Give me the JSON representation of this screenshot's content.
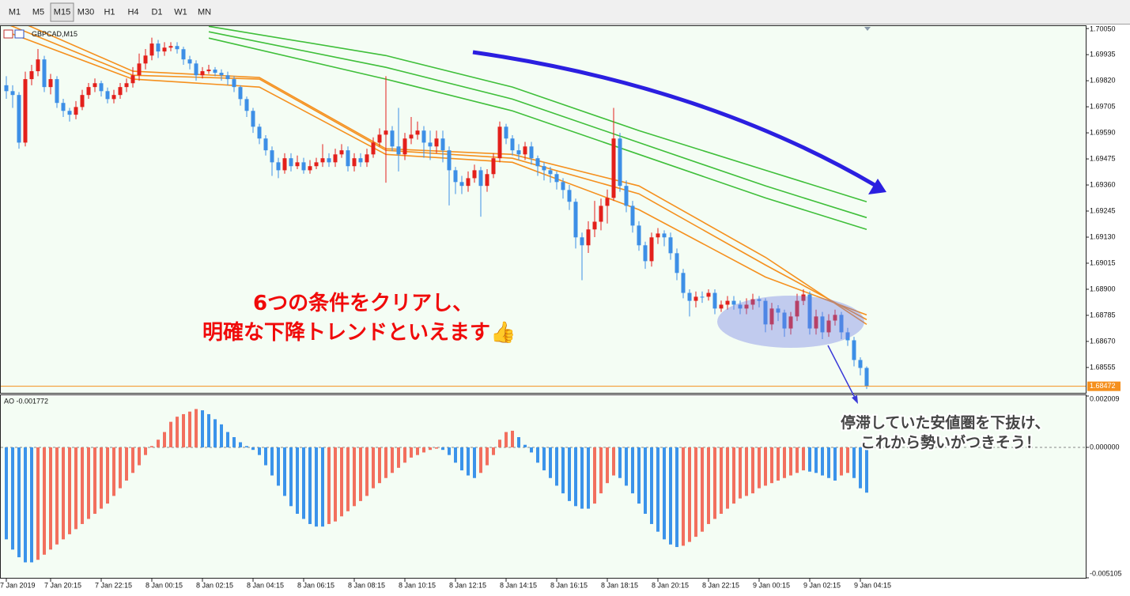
{
  "toolbar": {
    "timeframes": [
      "M1",
      "M5",
      "M15",
      "M30",
      "H1",
      "H4",
      "D1",
      "W1",
      "MN"
    ],
    "active": "M15"
  },
  "chart_data": [
    {
      "type": "candlestick",
      "title": "GBPCAD,M15",
      "categories": [
        "7 Jan 2019",
        null,
        null,
        null,
        null,
        null,
        null,
        "7 Jan 20:15",
        null,
        null,
        null,
        null,
        null,
        null,
        null,
        "7 Jan 22:15",
        null,
        null,
        null,
        null,
        null,
        null,
        null,
        "8 Jan 00:15",
        null,
        null,
        null,
        null,
        null,
        null,
        null,
        "8 Jan 02:15",
        null,
        null,
        null,
        null,
        null,
        null,
        null,
        "8 Jan 04:15",
        null,
        null,
        null,
        null,
        null,
        null,
        null,
        "8 Jan 06:15",
        null,
        null,
        null,
        null,
        null,
        null,
        null,
        "8 Jan 08:15",
        null,
        null,
        null,
        null,
        null,
        null,
        null,
        "8 Jan 10:15",
        null,
        null,
        null,
        null,
        null,
        null,
        null,
        "8 Jan 12:15",
        null,
        null,
        null,
        null,
        null,
        null,
        null,
        "8 Jan 14:15",
        null,
        null,
        null,
        null,
        null,
        null,
        null,
        "8 Jan 16:15",
        null,
        null,
        null,
        null,
        null,
        null,
        null,
        "8 Jan 18:15",
        null,
        null,
        null,
        null,
        null,
        null,
        null,
        "8 Jan 20:15",
        null,
        null,
        null,
        null,
        null,
        null,
        null,
        "8 Jan 22:15",
        null,
        null,
        null,
        null,
        null,
        null,
        null,
        "9 Jan 00:15",
        null,
        null,
        null,
        null,
        null,
        null,
        null,
        "9 Jan 02:15",
        null,
        null,
        null,
        null,
        null,
        null,
        null,
        "9 Jan 04:15",
        null
      ],
      "open": [
        1.698,
        1.69774,
        1.69757,
        1.69547,
        1.69827,
        1.69862,
        1.69914,
        1.69792,
        1.69827,
        1.69722,
        1.69687,
        1.6967,
        1.69704,
        1.69757,
        1.69792,
        1.69809,
        1.69774,
        1.69739,
        1.69757,
        1.69792,
        1.69809,
        1.69844,
        1.69896,
        1.69931,
        1.69984,
        1.69949,
        1.69966,
        1.69973,
        1.69959,
        1.69914,
        1.69896,
        1.69844,
        1.69862,
        1.69869,
        1.69855,
        1.69844,
        1.69827,
        1.69792,
        1.69739,
        1.69687,
        1.69617,
        1.69565,
        1.69513,
        1.6946,
        1.69425,
        1.69478,
        1.69443,
        1.6946,
        1.69425,
        1.69443,
        1.6946,
        1.69478,
        1.6946,
        1.69495,
        1.69513,
        1.69443,
        1.69478,
        1.6946,
        1.69495,
        1.69547,
        1.69582,
        1.696,
        1.6953,
        1.69495,
        1.69565,
        1.69582,
        1.696,
        1.69547,
        1.6953,
        1.69565,
        1.69513,
        1.69425,
        1.69373,
        1.69356,
        1.6939,
        1.69425,
        1.69356,
        1.69408,
        1.69478,
        1.69617,
        1.69565,
        1.69513,
        1.69495,
        1.6953,
        1.69478,
        1.69443,
        1.69425,
        1.69408,
        1.69373,
        1.69338,
        1.69286,
        1.69129,
        1.69094,
        1.69164,
        1.69198,
        1.69268,
        1.69303,
        1.69565,
        1.69356,
        1.69268,
        1.69181,
        1.69094,
        1.69024,
        1.69129,
        1.69146,
        1.69129,
        1.69059,
        1.68972,
        1.68884,
        1.68849,
        1.68867,
        1.68867,
        1.68884,
        1.68815,
        1.68832,
        1.68849,
        1.68832,
        1.68815,
        1.68832,
        1.68856,
        1.68849,
        1.68745,
        1.68815,
        1.68797,
        1.68727,
        1.6878,
        1.68849,
        1.68877,
        1.68727,
        1.6878,
        1.6871,
        1.68762,
        1.68787,
        1.6871,
        1.68675,
        1.68588,
        1.68553
      ],
      "high": [
        1.6984,
        1.698,
        1.6977,
        1.6986,
        1.6989,
        1.6996,
        1.6993,
        1.6985,
        1.6984,
        1.6974,
        1.697,
        1.6973,
        1.6978,
        1.6981,
        1.6983,
        1.6982,
        1.6979,
        1.6978,
        1.6981,
        1.6983,
        1.6988,
        1.6994,
        1.6996,
        1.7001,
        1.7,
        1.6999,
        1.6999,
        1.6999,
        1.6997,
        1.6993,
        1.6991,
        1.6988,
        1.6989,
        1.6988,
        1.6987,
        1.6986,
        1.6984,
        1.698,
        1.6975,
        1.697,
        1.6963,
        1.6958,
        1.6953,
        1.6948,
        1.695,
        1.695,
        1.6949,
        1.6948,
        1.6947,
        1.6948,
        1.6954,
        1.695,
        1.6952,
        1.6954,
        1.6953,
        1.695,
        1.695,
        1.6952,
        1.6957,
        1.6961,
        1.6984,
        1.6962,
        1.697,
        1.6959,
        1.6966,
        1.6964,
        1.6962,
        1.696,
        1.696,
        1.696,
        1.6953,
        1.6944,
        1.694,
        1.6942,
        1.6945,
        1.6944,
        1.6943,
        1.695,
        1.6964,
        1.6963,
        1.6958,
        1.6954,
        1.6955,
        1.6955,
        1.6949,
        1.6946,
        1.6944,
        1.6942,
        1.6939,
        1.6936,
        1.693,
        1.6915,
        1.692,
        1.6929,
        1.693,
        1.6934,
        1.697,
        1.6959,
        1.6938,
        1.6929,
        1.692,
        1.6911,
        1.6915,
        1.6917,
        1.6916,
        1.6915,
        1.6908,
        1.6899,
        1.689,
        1.6889,
        1.6889,
        1.689,
        1.689,
        1.6885,
        1.6887,
        1.6887,
        1.6885,
        1.6886,
        1.6888,
        1.6887,
        1.6886,
        1.6884,
        1.6883,
        1.6881,
        1.688,
        1.6888,
        1.689,
        1.6889,
        1.6881,
        1.688,
        1.6879,
        1.6881,
        1.688,
        1.6873,
        1.6869,
        1.686,
        1.6856
      ],
      "low": [
        1.6974,
        1.697,
        1.6952,
        1.6953,
        1.698,
        1.6984,
        1.6977,
        1.6976,
        1.697,
        1.6966,
        1.6964,
        1.6965,
        1.6969,
        1.6974,
        1.6977,
        1.6975,
        1.6972,
        1.6972,
        1.6974,
        1.6977,
        1.6979,
        1.6982,
        1.6987,
        1.6991,
        1.6992,
        1.6993,
        1.6995,
        1.6994,
        1.6989,
        1.6987,
        1.6982,
        1.6983,
        1.6985,
        1.6984,
        1.6982,
        1.698,
        1.6977,
        1.6971,
        1.6966,
        1.6959,
        1.6954,
        1.6949,
        1.694,
        1.6939,
        1.6941,
        1.6942,
        1.6943,
        1.6941,
        1.6941,
        1.6943,
        1.6944,
        1.6944,
        1.6944,
        1.6948,
        1.6942,
        1.6942,
        1.6944,
        1.6944,
        1.6948,
        1.6953,
        1.6937,
        1.6951,
        1.6942,
        1.6947,
        1.6954,
        1.6956,
        1.6948,
        1.6947,
        1.695,
        1.6946,
        1.6927,
        1.6932,
        1.6932,
        1.6933,
        1.6937,
        1.6922,
        1.6933,
        1.6939,
        1.6946,
        1.6954,
        1.6949,
        1.6947,
        1.6947,
        1.6945,
        1.694,
        1.6938,
        1.6937,
        1.6934,
        1.693,
        1.6925,
        1.6908,
        1.6894,
        1.6906,
        1.6913,
        1.6916,
        1.6919,
        1.6929,
        1.6933,
        1.6924,
        1.6915,
        1.6907,
        1.6899,
        1.69,
        1.691,
        1.6909,
        1.6903,
        1.6894,
        1.6886,
        1.6878,
        1.6882,
        1.6884,
        1.6885,
        1.6879,
        1.688,
        1.6881,
        1.6881,
        1.6879,
        1.6879,
        1.6881,
        1.6882,
        1.6871,
        1.6872,
        1.6876,
        1.6869,
        1.687,
        1.6876,
        1.6883,
        1.687,
        1.687,
        1.6868,
        1.6869,
        1.6874,
        1.6868,
        1.6865,
        1.6856,
        1.6852,
        1.6846
      ],
      "close": [
        1.69774,
        1.69757,
        1.69547,
        1.69827,
        1.69862,
        1.69914,
        1.69792,
        1.69827,
        1.69722,
        1.69687,
        1.6967,
        1.69704,
        1.69757,
        1.69792,
        1.69809,
        1.69774,
        1.69739,
        1.69757,
        1.69792,
        1.69809,
        1.69844,
        1.69896,
        1.69931,
        1.69984,
        1.69949,
        1.69966,
        1.69973,
        1.69959,
        1.69914,
        1.69896,
        1.69844,
        1.69862,
        1.69869,
        1.69855,
        1.69844,
        1.69827,
        1.69792,
        1.69739,
        1.69687,
        1.69617,
        1.69565,
        1.69513,
        1.6946,
        1.69425,
        1.69478,
        1.69443,
        1.6946,
        1.69425,
        1.69443,
        1.6946,
        1.69478,
        1.6946,
        1.69495,
        1.69513,
        1.69443,
        1.69478,
        1.6946,
        1.69495,
        1.69547,
        1.69582,
        1.696,
        1.6953,
        1.69495,
        1.69565,
        1.69582,
        1.696,
        1.69547,
        1.6953,
        1.69565,
        1.69513,
        1.69425,
        1.69373,
        1.69356,
        1.6939,
        1.69425,
        1.69356,
        1.69408,
        1.69478,
        1.69617,
        1.69565,
        1.69513,
        1.69495,
        1.6953,
        1.69478,
        1.69443,
        1.69425,
        1.69408,
        1.69373,
        1.69338,
        1.69286,
        1.69129,
        1.69094,
        1.69164,
        1.69198,
        1.69268,
        1.69303,
        1.69565,
        1.69356,
        1.69268,
        1.69181,
        1.69094,
        1.69024,
        1.69129,
        1.69146,
        1.69129,
        1.69059,
        1.68972,
        1.68884,
        1.68849,
        1.68867,
        1.68867,
        1.68884,
        1.68815,
        1.68832,
        1.68849,
        1.68832,
        1.68815,
        1.68832,
        1.68856,
        1.68849,
        1.68745,
        1.68815,
        1.68797,
        1.68727,
        1.6878,
        1.68849,
        1.68877,
        1.68727,
        1.6878,
        1.6871,
        1.68762,
        1.68787,
        1.6871,
        1.68675,
        1.68588,
        1.68553,
        1.68472
      ],
      "up_color": "#e3201b",
      "down_color": "#3d8fe6",
      "series": [
        {
          "color": "#f5901e",
          "x": [
            0,
            20,
            40,
            60,
            80,
            100,
            120,
            136
          ],
          "values": [
            1.70036,
            1.69827,
            1.69792,
            1.69495,
            1.6946,
            1.69251,
            1.68954,
            1.68787
          ]
        },
        {
          "color": "#f5901e",
          "x": [
            0,
            20,
            40,
            60,
            80,
            100,
            120,
            136
          ],
          "values": [
            1.70071,
            1.69844,
            1.69827,
            1.69513,
            1.69478,
            1.69321,
            1.69007,
            1.68766
          ]
        },
        {
          "color": "#f5901e",
          "x": [
            0,
            20,
            40,
            60,
            80,
            100,
            120,
            136
          ],
          "values": [
            1.70106,
            1.69862,
            1.69834,
            1.6952,
            1.69495,
            1.69356,
            1.69041,
            1.68745
          ]
        },
        {
          "color": "#3fbf3a",
          "x": [
            32,
            60,
            80,
            100,
            120,
            136
          ],
          "values": [
            1.7006,
            1.69931,
            1.69792,
            1.696,
            1.69425,
            1.69286
          ]
        },
        {
          "color": "#3fbf3a",
          "x": [
            32,
            60,
            80,
            100,
            120,
            136
          ],
          "values": [
            1.70036,
            1.69879,
            1.69739,
            1.69547,
            1.69356,
            1.69216
          ]
        },
        {
          "color": "#3fbf3a",
          "x": [
            32,
            60,
            80,
            100,
            120,
            136
          ],
          "values": [
            1.70008,
            1.69827,
            1.69687,
            1.69495,
            1.69303,
            1.69164
          ]
        }
      ],
      "last_price": 1.68472,
      "last_price_color": "#f5901e",
      "ylim": [
        1.68443,
        1.70061
      ],
      "yticks": [
        {
          "value": 1.7005,
          "label": "1.70050"
        },
        1.69935,
        {
          "value": 1.6982,
          "label": "1.69820"
        },
        1.69705,
        {
          "value": 1.6959,
          "label": "1.69590"
        },
        1.69475,
        {
          "value": 1.6936,
          "label": "1.69360"
        },
        1.69245,
        {
          "value": 1.6913,
          "label": "1.69130"
        },
        1.69015,
        {
          "value": 1.689,
          "label": "1.68900"
        },
        1.68785,
        {
          "value": 1.6867,
          "label": "1.68670"
        },
        1.68555
      ]
    },
    {
      "type": "histogram",
      "title": "AO -0.001772",
      "values": [
        -0.0036,
        -0.004,
        -0.0043,
        -0.0045,
        -0.0045,
        -0.0044,
        -0.0042,
        -0.004,
        -0.0038,
        -0.0036,
        -0.0034,
        -0.0032,
        -0.003,
        -0.0028,
        -0.0026,
        -0.0024,
        -0.0022,
        -0.0019,
        -0.0016,
        -0.0013,
        -0.001,
        -0.0007,
        -0.0003,
        5e-05,
        0.0003,
        0.0006,
        0.001,
        0.0012,
        0.0013,
        0.0014,
        0.0015,
        0.00145,
        0.0013,
        0.0011,
        0.0009,
        0.0006,
        0.0004,
        0.0002,
        5e-05,
        -0.0001,
        -0.0003,
        -0.0007,
        -0.0011,
        -0.0015,
        -0.0019,
        -0.0023,
        -0.0026,
        -0.0028,
        -0.003,
        -0.0031,
        -0.0031,
        -0.003,
        -0.0029,
        -0.0027,
        -0.0025,
        -0.0023,
        -0.0021,
        -0.0019,
        -0.0016,
        -0.0014,
        -0.0012,
        -0.001,
        -0.0008,
        -0.0006,
        -0.0004,
        -0.0003,
        -0.0002,
        -0.0001,
        -5e-05,
        -0.0001,
        -0.0003,
        -0.0006,
        -0.0009,
        -0.0011,
        -0.0012,
        -0.001,
        -0.0007,
        -0.0003,
        0.0003,
        0.0006,
        0.00065,
        0.0004,
        0.0001,
        -0.0002,
        -0.0006,
        -0.0009,
        -0.0012,
        -0.0015,
        -0.0018,
        -0.0021,
        -0.0023,
        -0.0024,
        -0.0024,
        -0.0022,
        -0.0018,
        -0.0014,
        -0.0011,
        -0.0012,
        -0.0015,
        -0.0018,
        -0.0022,
        -0.0026,
        -0.003,
        -0.0033,
        -0.0036,
        -0.0038,
        -0.0039,
        -0.00385,
        -0.0037,
        -0.0035,
        -0.0033,
        -0.003,
        -0.0028,
        -0.0026,
        -0.0024,
        -0.0022,
        -0.002,
        -0.0019,
        -0.0018,
        -0.0016,
        -0.0015,
        -0.0014,
        -0.0013,
        -0.0012,
        -0.0011,
        -0.001,
        -0.0009,
        -0.00095,
        -0.001,
        -0.0011,
        -0.0012,
        -0.0013,
        -0.0011,
        -0.001,
        -0.0012,
        -0.0016,
        -0.001772
      ],
      "up_color": "#f26f5e",
      "down_color": "#3b93ea",
      "ylim": [
        -0.005105,
        0.002009
      ],
      "yticks": [
        0.002009,
        {
          "value": 0,
          "label": "0.000000"
        },
        -0.005105
      ]
    }
  ],
  "annotations": {
    "headline": [
      "6つの条件をクリアし、",
      "明確な下降トレンドといえます👍"
    ],
    "note": [
      "停滞していた安値圏を下抜け、",
      "これから勢いがつきそう！"
    ]
  }
}
